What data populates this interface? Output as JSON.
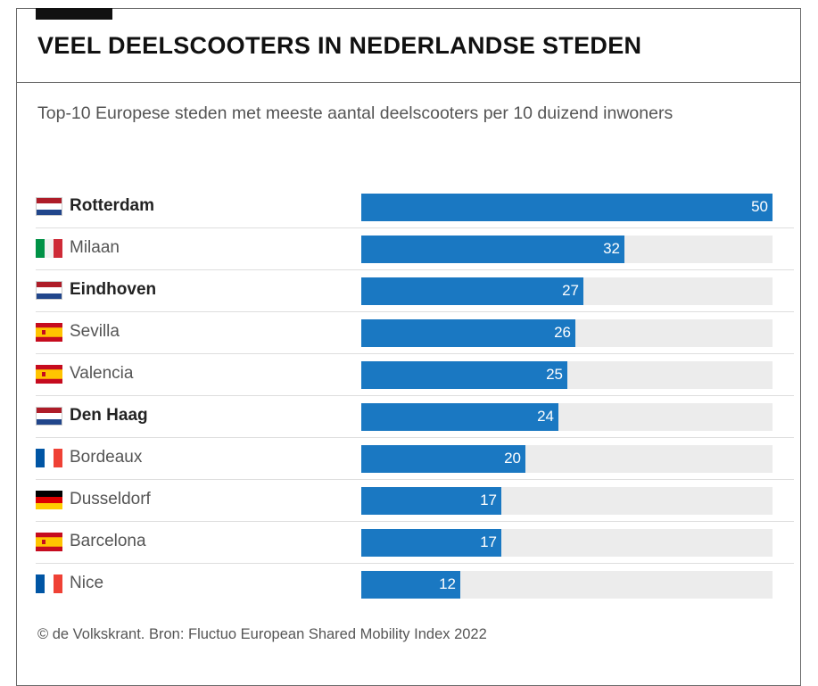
{
  "header": {
    "title": "VEEL DEELSCOOTERS IN NEDERLANDSE STEDEN",
    "subtitle": "Top-10 Europese steden met meeste aantal deelscooters per 10 duizend inwoners"
  },
  "chart_data": {
    "type": "bar",
    "orientation": "horizontal",
    "title": "VEEL DEELSCOOTERS IN NEDERLANDSE STEDEN",
    "subtitle": "Top-10 Europese steden met meeste aantal deelscooters per 10 duizend inwoners",
    "categories": [
      "Rotterdam",
      "Milaan",
      "Eindhoven",
      "Sevilla",
      "Valencia",
      "Den Haag",
      "Bordeaux",
      "Dusseldorf",
      "Barcelona",
      "Nice"
    ],
    "values": [
      50,
      32,
      27,
      26,
      25,
      24,
      20,
      17,
      17,
      12
    ],
    "countries": [
      "nl",
      "it",
      "nl",
      "es",
      "es",
      "nl",
      "fr",
      "de",
      "es",
      "fr"
    ],
    "highlighted": [
      true,
      false,
      true,
      false,
      false,
      true,
      false,
      false,
      false,
      false
    ],
    "xlim": [
      0,
      50
    ],
    "grid": false,
    "legend": "none",
    "colors": {
      "bar": "#1a78c2",
      "track": "#ececec"
    }
  },
  "footer": {
    "source": "© de Volkskrant. Bron: Fluctuo European Shared Mobility Index 2022"
  }
}
